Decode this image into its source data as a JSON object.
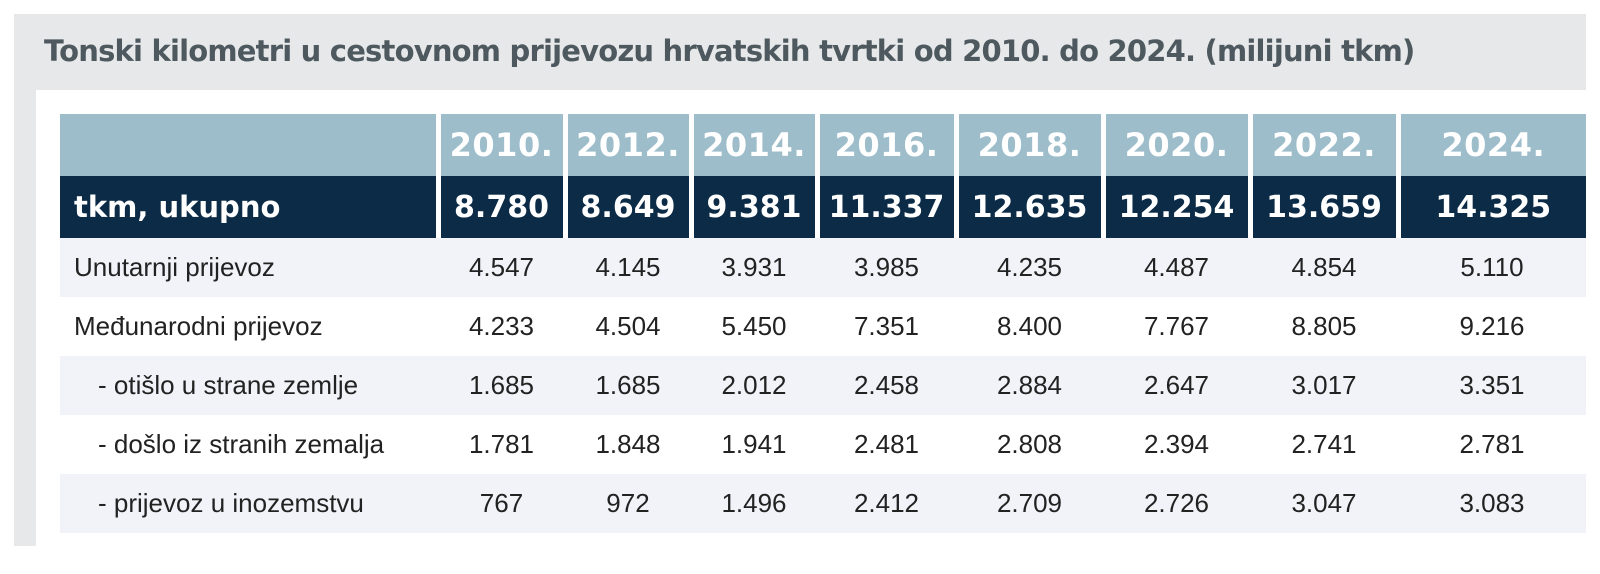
{
  "title": "Tonski kilometri u cestovnom prijevozu hrvatskih tvrtki od 2010. do 2024. (milijuni tkm)",
  "colors": {
    "frame": "#e6e8e9",
    "header": "#9dbdcb",
    "total": "#0c2b47",
    "row_shade": "#f1f3f8",
    "title": "#4d585f"
  },
  "chart_data": {
    "type": "table",
    "title": "Tonski kilometri u cestovnom prijevozu hrvatskih tvrtki od 2010. do 2024. (milijuni tkm)",
    "columns": [
      "2010.",
      "2012.",
      "2014.",
      "2016.",
      "2018.",
      "2020.",
      "2022.",
      "2024."
    ],
    "rows": [
      {
        "label": "tkm, ukupno",
        "values": [
          "8.780",
          "8.649",
          "9.381",
          "11.337",
          "12.635",
          "12.254",
          "13.659",
          "14.325"
        ]
      },
      {
        "label": "Unutarnji prijevoz",
        "values": [
          "4.547",
          "4.145",
          "3.931",
          "3.985",
          "4.235",
          "4.487",
          "4.854",
          "5.110"
        ]
      },
      {
        "label": "Međunarodni prijevoz",
        "values": [
          "4.233",
          "4.504",
          "5.450",
          "7.351",
          "8.400",
          "7.767",
          "8.805",
          "9.216"
        ]
      },
      {
        "label": "- otišlo u strane zemlje",
        "values": [
          "1.685",
          "1.685",
          "2.012",
          "2.458",
          "2.884",
          "2.647",
          "3.017",
          "3.351"
        ]
      },
      {
        "label": "- došlo iz stranih zemalja",
        "values": [
          "1.781",
          "1.848",
          "1.941",
          "2.481",
          "2.808",
          "2.394",
          "2.741",
          "2.781"
        ]
      },
      {
        "label": "- prijevoz u inozemstvu",
        "values": [
          "767",
          "972",
          "1.496",
          "2.412",
          "2.709",
          "2.726",
          "3.047",
          "3.083"
        ]
      }
    ]
  }
}
